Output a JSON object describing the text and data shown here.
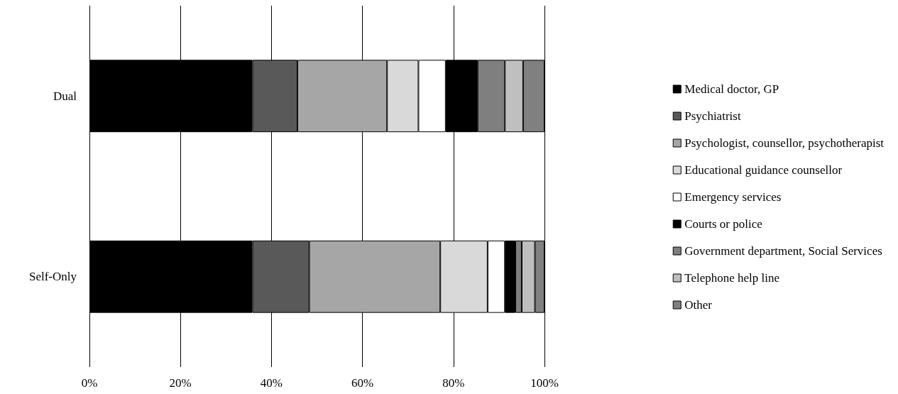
{
  "chart_data": {
    "type": "bar",
    "orientation": "horizontal",
    "stacked": true,
    "categories": [
      "Dual",
      "Self-Only"
    ],
    "series": [
      {
        "name": "Medical doctor, GP",
        "color": "#000000",
        "values": [
          35.8,
          35.8
        ]
      },
      {
        "name": "Psychiatrist",
        "color": "#595959",
        "values": [
          9.9,
          12.5
        ]
      },
      {
        "name": "Psychologist, counsellor, psychotherapist",
        "color": "#a6a6a6",
        "values": [
          19.7,
          28.8
        ]
      },
      {
        "name": "Educational guidance counsellor",
        "color": "#d9d9d9",
        "values": [
          6.9,
          10.4
        ]
      },
      {
        "name": "Emergency services",
        "color": "#ffffff",
        "values": [
          6.0,
          3.8
        ]
      },
      {
        "name": "Courts or police",
        "color": "#000000",
        "values": [
          7.0,
          2.3
        ]
      },
      {
        "name": "Government department, Social Services",
        "color": "#7f7f7f",
        "values": [
          6.0,
          1.4
        ]
      },
      {
        "name": "Telephone help line",
        "color": "#bfbfbf",
        "values": [
          4.0,
          2.9
        ]
      },
      {
        "name": "Other",
        "color": "#808080",
        "values": [
          4.7,
          2.1
        ]
      }
    ],
    "xlim": [
      0,
      100
    ],
    "xticks": [
      {
        "value": 0,
        "label": "0%"
      },
      {
        "value": 20,
        "label": "20%"
      },
      {
        "value": 40,
        "label": "40%"
      },
      {
        "value": 60,
        "label": "60%"
      },
      {
        "value": 80,
        "label": "80%"
      },
      {
        "value": 100,
        "label": "100%"
      }
    ],
    "grid": "x",
    "legend": "right"
  }
}
